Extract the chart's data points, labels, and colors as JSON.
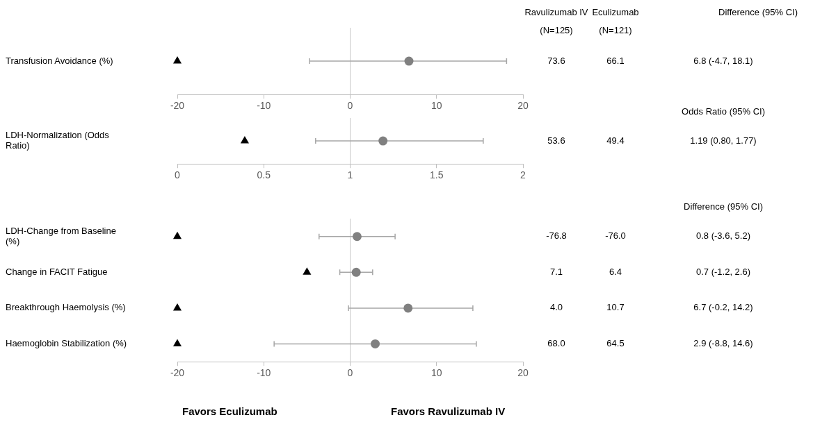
{
  "chart_data": [
    {
      "type": "scatter",
      "orientation": "horizontal",
      "categories": [
        "Transfusion Avoidance (%)"
      ],
      "xlim": [
        -20,
        20
      ],
      "xticks": [
        -20,
        -10,
        0,
        10,
        20
      ],
      "grid": false,
      "legend": false,
      "marker": "circle",
      "ref_lines": [
        {
          "axis": "x",
          "value": 0,
          "color": "#c8c8c8"
        }
      ],
      "series": [
        {
          "values": [
            6.8
          ],
          "errors": [
            [
              -4.7,
              18.1
            ]
          ],
          "color": "#808080"
        },
        {
          "values": [
            -20
          ],
          "color": "#000000",
          "marker": "triangle"
        }
      ],
      "annotations": [
        "Ravulizumab IV",
        "Eculizumab",
        "(N=125)",
        "(N=121)",
        "Difference (95% CI)",
        "73.6",
        "66.1",
        "6.8 (-4.7, 18.1)"
      ]
    },
    {
      "type": "scatter",
      "orientation": "horizontal",
      "categories": [
        "LDH-Normalization (Odds Ratio)"
      ],
      "xlim": [
        0,
        2
      ],
      "xticks": [
        0,
        0.5,
        1,
        1.5,
        2
      ],
      "grid": false,
      "legend": false,
      "marker": "circle",
      "ref_lines": [
        {
          "axis": "x",
          "value": 1,
          "color": "#c8c8c8"
        }
      ],
      "series": [
        {
          "values": [
            1.19
          ],
          "errors": [
            [
              0.8,
              1.77
            ]
          ],
          "color": "#808080"
        },
        {
          "values": [
            0.39
          ],
          "color": "#000000",
          "marker": "triangle"
        }
      ],
      "annotations": [
        "Odds Ratio (95% CI)",
        "53.6",
        "49.4",
        "1.19 (0.80, 1.77)"
      ]
    },
    {
      "type": "scatter",
      "orientation": "horizontal",
      "categories": [
        "LDH-Change from Baseline (%)",
        "Change in FACIT Fatigue",
        "Breakthrough Haemolysis (%)",
        "Haemoglobin Stabilization (%)"
      ],
      "xlim": [
        -20,
        20
      ],
      "xticks": [
        -20,
        -10,
        0,
        10,
        20
      ],
      "grid": false,
      "legend": false,
      "marker": "circle",
      "ref_lines": [
        {
          "axis": "x",
          "value": 0,
          "color": "#c8c8c8"
        }
      ],
      "series": [
        {
          "values": [
            0.8,
            0.7,
            6.7,
            2.9
          ],
          "errors": [
            [
              -3.6,
              5.2
            ],
            [
              -1.2,
              2.6
            ],
            [
              -0.2,
              14.2
            ],
            [
              -8.8,
              14.6
            ]
          ],
          "color": "#808080"
        },
        {
          "values": [
            -20,
            -5,
            -20,
            -20
          ],
          "color": "#000000",
          "marker": "triangle"
        }
      ],
      "annotations": [
        "Difference (95% CI)",
        "-76.8",
        "-76.0",
        "0.8 (-3.6, 5.2)",
        "7.1",
        "6.4",
        "0.7 (-1.2, 2.6)",
        "4.0",
        "10.7",
        "6.7 (-0.2, 14.2)",
        "68.0",
        "64.5",
        "2.9 (-8.8, 14.6)"
      ]
    },
    {
      "type": "other",
      "annotations": [
        "Favors Eculizumab",
        "Favors Ravulizumab IV"
      ]
    }
  ]
}
